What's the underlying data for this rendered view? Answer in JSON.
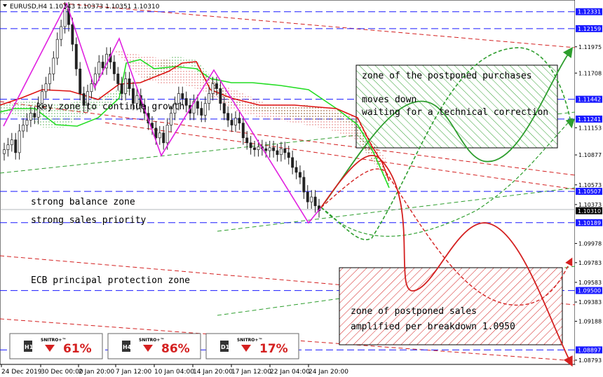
{
  "header": {
    "symbol_line": "EURUSD,H4  1.10343 1.10373 1.10351 1.10310"
  },
  "chart_data": {
    "type": "candlestick",
    "symbol": "EURUSD",
    "timeframe": "H4",
    "ylim": [
      1.0875,
      1.1245
    ],
    "price_ticks": [
      "1.11975",
      "1.11708",
      "1.11153",
      "1.10877",
      "1.10573",
      "1.10373",
      "1.09978",
      "1.09783",
      "1.09583",
      "1.09383",
      "1.09188",
      "1.08793"
    ],
    "x_ticks": [
      "24 Dec 2019",
      "30 Dec 00:00",
      "2 Jan 20:00",
      "7 Jan 12:00",
      "10 Jan 04:00",
      "14 Jan 20:00",
      "17 Jan 12:00",
      "22 Jan 04:00",
      "24 Jan 20:00"
    ],
    "levels": [
      {
        "price": 1.12331,
        "label": "1.12331",
        "style": "dashed-blue"
      },
      {
        "price": 1.12159,
        "label": "1.12159",
        "style": "dashed-blue"
      },
      {
        "price": 1.11442,
        "label": "1.11442",
        "style": "dashed-blue"
      },
      {
        "price": 1.11241,
        "label": "1.11241",
        "style": "dashed-blue"
      },
      {
        "price": 1.10507,
        "label": "1.10507",
        "style": "dashed-blue"
      },
      {
        "price": 1.10189,
        "label": "1.10189",
        "style": "dashed-blue"
      },
      {
        "price": 1.095,
        "label": "1.09500",
        "style": "dashed-blue"
      },
      {
        "price": 1.08897,
        "label": "1.08897",
        "style": "dashed-blue"
      }
    ],
    "current_price": {
      "price": 1.1031,
      "label": "1.10310"
    },
    "annotations": [
      {
        "text": "key zone to continue growth"
      },
      {
        "text": "strong balance zone"
      },
      {
        "text": "strong sales priority"
      },
      {
        "text": "ECB principal protection zone"
      }
    ],
    "zones": [
      {
        "type": "buy",
        "color": "#2e9e2e",
        "lines": [
          "zone of the postponed purchases",
          "moves down",
          "waiting for a technical correction"
        ]
      },
      {
        "type": "sell",
        "color": "#d42020",
        "lines": [
          "zone of postponed sales",
          "amplified per breakdown 1.0950"
        ]
      }
    ],
    "indicators": [
      {
        "timeframe": "H1",
        "value": "61%",
        "brand": "SNITRO+™"
      },
      {
        "timeframe": "H4",
        "value": "86%",
        "brand": "SNITRO+™"
      },
      {
        "timeframe": "D1",
        "value": "17%",
        "brand": "SNITRO+™"
      }
    ],
    "candles_close": [
      1.1093,
      1.1098,
      1.1103,
      1.109,
      1.1112,
      1.1118,
      1.1123,
      1.113,
      1.1126,
      1.114,
      1.1152,
      1.116,
      1.117,
      1.1186,
      1.1205,
      1.1218,
      1.1236,
      1.122,
      1.12,
      1.1175,
      1.115,
      1.1138,
      1.1152,
      1.116,
      1.117,
      1.1182,
      1.1176,
      1.119,
      1.1182,
      1.117,
      1.116,
      1.115,
      1.1165,
      1.1155,
      1.114,
      1.1148,
      1.1138,
      1.113,
      1.112,
      1.1115,
      1.1105,
      1.111,
      1.11,
      1.1118,
      1.113,
      1.114,
      1.115,
      1.1145,
      1.1138,
      1.113,
      1.1142,
      1.1135,
      1.1128,
      1.114,
      1.115,
      1.116,
      1.1155,
      1.114,
      1.113,
      1.1123,
      1.1118,
      1.1125,
      1.112,
      1.1105,
      1.11,
      1.1095,
      1.1093,
      1.1096,
      1.1094,
      1.1092,
      1.1095,
      1.1092,
      1.1088,
      1.1094,
      1.109,
      1.1085,
      1.1075,
      1.107,
      1.1065,
      1.105,
      1.104,
      1.1045,
      1.1036,
      1.1031
    ]
  },
  "colors": {
    "blue_level": "#1a1aff",
    "green": "#2e9e2e",
    "red": "#d42020",
    "magenta": "#e020e0",
    "ichimoku_green": "#22dd22",
    "ichimoku_red": "#dd1111"
  }
}
